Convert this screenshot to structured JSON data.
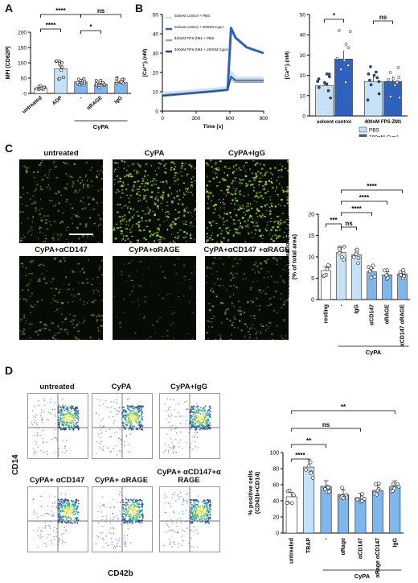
{
  "panels": {
    "a": "A",
    "b": "B",
    "c": "C",
    "d": "D"
  },
  "colors": {
    "light_blue": "#c6e2f7",
    "mid_blue": "#7fb6ec",
    "dark_blue": "#2f62bd",
    "navy": "#1f3f8f",
    "gray": "#888888",
    "micro_green": "#9bd12a"
  },
  "panel_a": {
    "chart_data": {
      "type": "bar",
      "ylabel": "MFI (CD62P)",
      "ylim": [
        0,
        200
      ],
      "yticks": [
        "0",
        "50",
        "100",
        "150",
        "200"
      ],
      "categories": [
        "untreated",
        "ADP",
        "-",
        "αRAGE",
        "IgG"
      ],
      "values": [
        18,
        80,
        38,
        30,
        35
      ],
      "group_label": "CyPA",
      "significance": [
        {
          "from": "untreated",
          "to": "ADP",
          "label": "****"
        },
        {
          "from": "untreated",
          "to": "-",
          "label": "****"
        },
        {
          "from": "-",
          "to": "αRAGE",
          "label": "*"
        },
        {
          "from": "-",
          "to": "IgG",
          "label": "ns"
        }
      ]
    }
  },
  "panel_b_line": {
    "chart_data": {
      "type": "line",
      "xlabel": "Time [s]",
      "ylabel": "[Ca²⁺]ᵢ (nM)",
      "xlim": [
        0,
        900
      ],
      "ylim": [
        0,
        50
      ],
      "xticks": [
        "0",
        "300",
        "600",
        "900"
      ],
      "yticks": [
        "0",
        "10",
        "20",
        "30",
        "40",
        "50"
      ],
      "series": [
        {
          "name": "solvent control + PBS",
          "x": [
            0,
            200,
            400,
            580,
            610,
            650,
            750,
            900
          ],
          "y": [
            9,
            10,
            11,
            12,
            20,
            17,
            17,
            17
          ]
        },
        {
          "name": "solvent control + 200nM CypA",
          "x": [
            0,
            200,
            400,
            580,
            610,
            650,
            750,
            900
          ],
          "y": [
            8,
            9,
            10,
            11,
            43,
            38,
            33,
            30
          ]
        },
        {
          "name": "400nM FPS-ZM1 + PBS",
          "x": [
            0,
            200,
            400,
            580,
            610,
            650,
            750,
            900
          ],
          "y": [
            8,
            9,
            10,
            11,
            17,
            15,
            15,
            15
          ]
        },
        {
          "name": "400nM FPS-ZM1 + 200nM CypA",
          "x": [
            0,
            200,
            400,
            580,
            610,
            650,
            750,
            900
          ],
          "y": [
            8,
            9,
            10,
            11,
            18,
            16,
            16,
            16
          ]
        }
      ]
    }
  },
  "panel_b_bar": {
    "chart_data": {
      "type": "bar",
      "ylabel": "[Ca²⁺]ᵢ (nM)",
      "ylim": [
        0,
        50
      ],
      "yticks": [
        "0",
        "10",
        "20",
        "30",
        "40",
        "50"
      ],
      "categories": [
        "solvent control",
        "400nM FPS-ZM1"
      ],
      "series": [
        {
          "name": "PBS",
          "values": [
            15,
            17
          ]
        },
        {
          "name": "200nM CypA",
          "values": [
            28,
            17
          ]
        }
      ],
      "significance": [
        {
          "group": "solvent control",
          "label": "*"
        },
        {
          "group": "400nM FPS-ZM1",
          "label": "ns"
        }
      ]
    }
  },
  "panel_c": {
    "images": [
      {
        "label": "untreated",
        "density": 0.5
      },
      {
        "label": "CyPA",
        "density": 0.9
      },
      {
        "label": "CyPA+IgG",
        "density": 0.95
      },
      {
        "label": "CyPA+αCD147",
        "density": 0.45
      },
      {
        "label": "CyPA+αRAGE",
        "density": 0.2
      },
      {
        "label": "CyPA+αCD147 +αRAGE",
        "density": 0.45
      }
    ],
    "chart_data": {
      "type": "bar",
      "ylabel": "Thrombus formation, human (% of total area)",
      "ylim": [
        0,
        20
      ],
      "yticks": [
        "0",
        "5",
        "10",
        "15",
        "20"
      ],
      "categories": [
        "resting",
        "-",
        "IgG",
        "αCD147",
        "αRAGE",
        "αCD147 αRAGE"
      ],
      "values": [
        6.8,
        11,
        10.5,
        6.5,
        5.8,
        6
      ],
      "group_label": "CyPA",
      "significance": [
        {
          "from": "resting",
          "to": "-",
          "label": "***"
        },
        {
          "from": "-",
          "to": "IgG",
          "label": "ns"
        },
        {
          "from": "-",
          "to": "αCD147",
          "label": "****"
        },
        {
          "from": "-",
          "to": "αRAGE",
          "label": "****"
        },
        {
          "from": "-",
          "to": "αCD147 αRAGE",
          "label": "****"
        }
      ]
    }
  },
  "panel_d": {
    "plots": [
      {
        "label": "untreated"
      },
      {
        "label": "CyPA"
      },
      {
        "label": "CyPA+IgG"
      },
      {
        "label": "CyPA+ αCD147"
      },
      {
        "label": "CyPA+ αRAGE"
      },
      {
        "label": "CyPA+ αCD147+α RAGE"
      }
    ],
    "ylabel": "CD14",
    "xlabel": "CD42b",
    "chart_data": {
      "type": "bar",
      "ylabel": "% positive cells (CD42b+CD14)",
      "ylim": [
        0,
        100
      ],
      "yticks": [
        "0",
        "20",
        "40",
        "60",
        "80",
        "100"
      ],
      "categories": [
        "untreated",
        "TRAP",
        "-",
        "αRage",
        "αCD147",
        "αRage αCD147",
        "IgG"
      ],
      "values": [
        45,
        82,
        58,
        48,
        44,
        53,
        58
      ],
      "group_label": "CyPA",
      "significance": [
        {
          "from": "untreated",
          "to": "TRAP",
          "label": "****"
        },
        {
          "from": "untreated",
          "to": "-",
          "label": "**"
        },
        {
          "from": "untreated",
          "to": "αCD147",
          "label": "ns"
        },
        {
          "from": "untreated",
          "to": "IgG",
          "label": "**"
        }
      ]
    }
  }
}
